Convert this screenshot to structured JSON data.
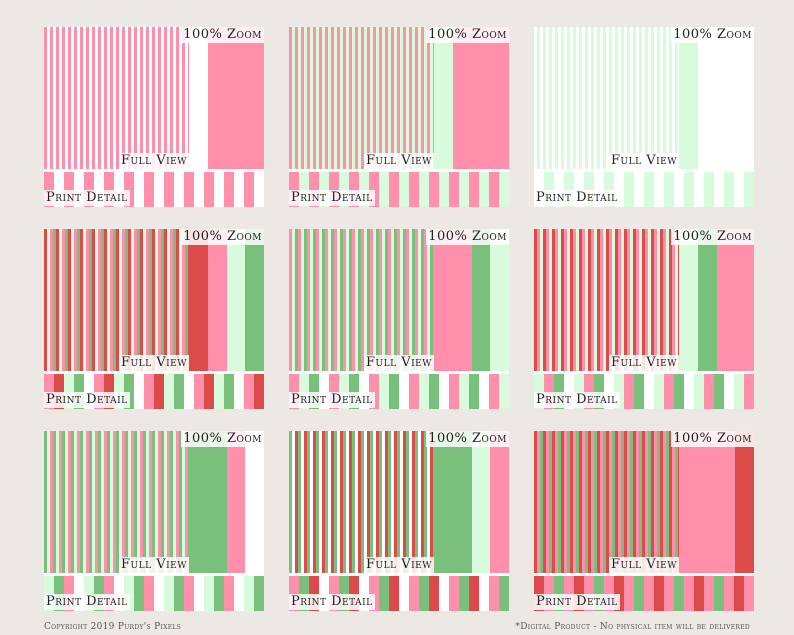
{
  "labels": {
    "zoom": "100% Zoom",
    "full_view": "Full View",
    "print_detail": "Print Detail"
  },
  "footer": {
    "copyright": "Copyright 2019 Purdy's Pixels",
    "disclaimer": "*Digital Product - No physical item will be delivered"
  },
  "colors": {
    "pink": "#ff8fab",
    "red": "#dc4a4a",
    "green": "#79c07c",
    "mint": "#d9fbdd",
    "white": "#ffffff"
  },
  "tiles": [
    {
      "full_stripes": [
        "pink",
        "white"
      ],
      "zoom": [
        "white",
        "pink",
        "pink",
        "pink"
      ],
      "detail": [
        "pink",
        "white"
      ]
    },
    {
      "full_stripes": [
        "pink",
        "mint"
      ],
      "zoom": [
        "mint",
        "pink",
        "pink",
        "pink"
      ],
      "detail": [
        "pink",
        "mint"
      ]
    },
    {
      "full_stripes": [
        "white",
        "mint"
      ],
      "zoom": [
        "mint",
        "white",
        "white",
        "white"
      ],
      "detail": [
        "white",
        "mint"
      ]
    },
    {
      "full_stripes": [
        "red",
        "mint",
        "pink",
        "green"
      ],
      "zoom": [
        "red",
        "pink",
        "mint",
        "green"
      ],
      "detail": [
        "pink",
        "red",
        "mint",
        "green",
        "white"
      ]
    },
    {
      "full_stripes": [
        "pink",
        "mint",
        "green"
      ],
      "zoom": [
        "pink",
        "pink",
        "green",
        "mint"
      ],
      "detail": [
        "pink",
        "mint",
        "green",
        "white"
      ]
    },
    {
      "full_stripes": [
        "red",
        "pink",
        "mint"
      ],
      "zoom": [
        "mint",
        "green",
        "pink",
        "pink"
      ],
      "detail": [
        "mint",
        "pink",
        "green",
        "white"
      ]
    },
    {
      "full_stripes": [
        "green",
        "mint",
        "pink"
      ],
      "zoom": [
        "green",
        "green",
        "pink",
        "white"
      ],
      "detail": [
        "mint",
        "green",
        "pink",
        "white"
      ]
    },
    {
      "full_stripes": [
        "green",
        "white",
        "red"
      ],
      "zoom": [
        "green",
        "green",
        "mint",
        "pink"
      ],
      "detail": [
        "pink",
        "green",
        "red",
        "white"
      ]
    },
    {
      "full_stripes": [
        "red",
        "pink",
        "green"
      ],
      "zoom": [
        "pink",
        "pink",
        "pink",
        "red"
      ],
      "detail": [
        "red",
        "pink",
        "green",
        "pink"
      ]
    }
  ]
}
